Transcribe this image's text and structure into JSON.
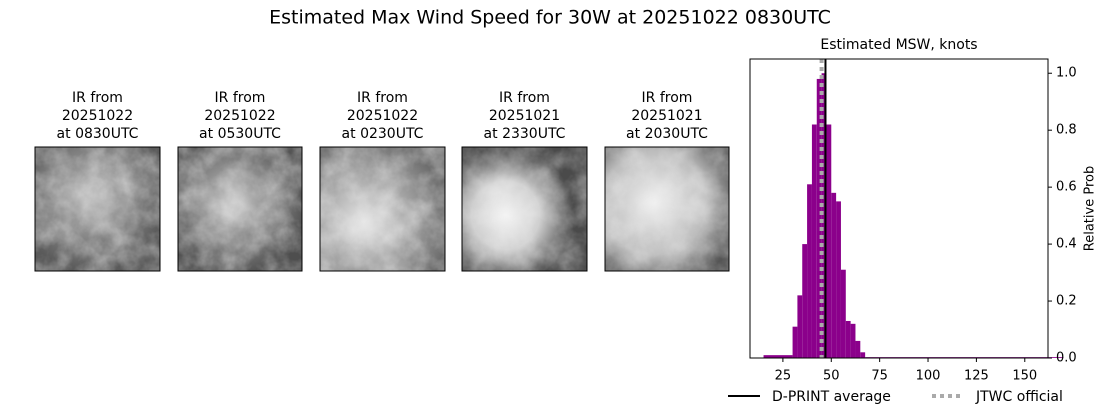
{
  "title": "Estimated Max Wind Speed for 30W at 20251022 0830UTC",
  "panels": [
    {
      "lines": [
        "IR from",
        "20251022",
        "at 0830UTC"
      ]
    },
    {
      "lines": [
        "IR from",
        "20251022",
        "at 0530UTC"
      ]
    },
    {
      "lines": [
        "IR from",
        "20251022",
        "at 0230UTC"
      ]
    },
    {
      "lines": [
        "IR from",
        "20251021",
        "at 2330UTC"
      ]
    },
    {
      "lines": [
        "IR from",
        "20251021",
        "at 2030UTC"
      ]
    }
  ],
  "chart_data": {
    "type": "histogram",
    "title": "Estimated MSW, knots",
    "y_label": "Relative Prob",
    "color": "#8b008b",
    "bins": [
      15,
      30,
      32.5,
      35,
      37.5,
      40,
      42.5,
      45,
      47.5,
      50,
      52.5,
      55,
      57.5,
      60,
      62.5,
      65,
      67.5,
      170
    ],
    "values": [
      0.01,
      0.11,
      0.22,
      0.4,
      0.61,
      0.82,
      0.98,
      1.0,
      0.82,
      0.58,
      0.55,
      0.31,
      0.13,
      0.12,
      0.06,
      0.02,
      0.003
    ],
    "xlim": [
      8,
      162
    ],
    "ylim": [
      0,
      1.05
    ],
    "xticks": [
      25,
      50,
      75,
      100,
      125,
      150
    ],
    "yticks": [
      {
        "value": 0,
        "label": "0.0"
      },
      0.2,
      0.4,
      0.6,
      0.8,
      {
        "value": 1,
        "label": "1.0"
      }
    ],
    "y_axis_side": "right",
    "reference_lines": [
      {
        "name": "D-PRINT average",
        "value": 47,
        "color": "#000000",
        "style": "solid"
      },
      {
        "name": "JTWC official",
        "value": 45,
        "color": "#aaaaaa",
        "style": "dotted"
      }
    ]
  }
}
